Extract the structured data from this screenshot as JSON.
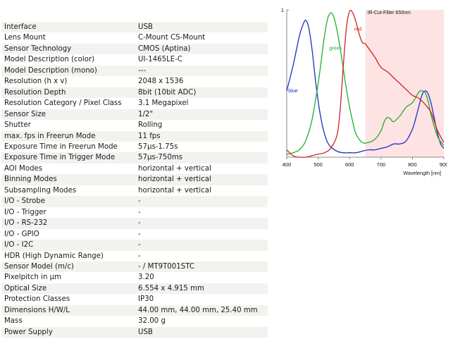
{
  "specs": [
    {
      "label": "Interface",
      "value": "USB"
    },
    {
      "label": "Lens Mount",
      "value": "C-Mount CS-Mount"
    },
    {
      "label": "Sensor Technology",
      "value": "CMOS (Aptina)"
    },
    {
      "label": "Model Description (color)",
      "value": "UI-1465LE-C"
    },
    {
      "label": "Model Description (mono)",
      "value": "---"
    },
    {
      "label": "Resolution (h x v)",
      "value": "2048 x 1536"
    },
    {
      "label": "Resolution Depth",
      "value": "8bit (10bit ADC)"
    },
    {
      "label": "Resolution Category / Pixel Class",
      "value": "3.1 Megapixel"
    },
    {
      "label": "Sensor Size",
      "value": "1/2\""
    },
    {
      "label": "Shutter",
      "value": "Rolling"
    },
    {
      "label": "max. fps in Freerun Mode",
      "value": "11 fps"
    },
    {
      "label": "Exposure Time in Freerun Mode",
      "value": "57µs-1.75s"
    },
    {
      "label": "Exposure Time in Trigger Mode",
      "value": "57µs-750ms"
    },
    {
      "label": "AOI Modes",
      "value": "horizontal + vertical"
    },
    {
      "label": "Binning Modes",
      "value": "horizontal + vertical"
    },
    {
      "label": "Subsampling Modes",
      "value": "horizontal + vertical"
    },
    {
      "label": "I/O - Strobe",
      "value": "-"
    },
    {
      "label": "I/O - Trigger",
      "value": "-"
    },
    {
      "label": "I/O - RS-232",
      "value": "-"
    },
    {
      "label": "I/O - GPIO",
      "value": "-"
    },
    {
      "label": "I/O - I2C",
      "value": "-"
    },
    {
      "label": "HDR (High Dynamic Range)",
      "value": "-"
    },
    {
      "label": "Sensor Model (m/c)",
      "value": "- / MT9T001STC"
    },
    {
      "label": "Pixelpitch in µm",
      "value": "3.20"
    },
    {
      "label": "Optical Size",
      "value": "6.554 x 4.915 mm"
    },
    {
      "label": "Protection Classes",
      "value": "IP30"
    },
    {
      "label": "Dimensions H/W/L",
      "value": "44.00 mm, 44.00 mm, 25.40 mm"
    },
    {
      "label": "Mass",
      "value": "32.00 g"
    },
    {
      "label": "Power Supply",
      "value": "USB"
    }
  ],
  "chart_data": {
    "type": "line",
    "xlabel": "Wavelength [nm]",
    "ylabel": "",
    "xlim": [
      400,
      900
    ],
    "ylim": [
      0,
      1
    ],
    "x_ticks": [
      400,
      500,
      600,
      700,
      800,
      900
    ],
    "y_tick_label": "1",
    "annotation": "IR-Cut-Filter 650nm",
    "shaded_region": [
      650,
      900
    ],
    "shade_color": "#fde3e3",
    "series": [
      {
        "name": "blue",
        "color": "#1f2ec4",
        "x": [
          400,
          420,
          440,
          450,
          460,
          470,
          480,
          490,
          500,
          510,
          520,
          530,
          540,
          560,
          580,
          600,
          620,
          640,
          660,
          680,
          700,
          720,
          740,
          760,
          780,
          800,
          810,
          820,
          830,
          840,
          850,
          860,
          870,
          880,
          890,
          900
        ],
        "y": [
          0.45,
          0.62,
          0.82,
          0.89,
          0.93,
          0.88,
          0.74,
          0.55,
          0.38,
          0.25,
          0.16,
          0.1,
          0.07,
          0.04,
          0.03,
          0.03,
          0.03,
          0.04,
          0.05,
          0.05,
          0.06,
          0.07,
          0.09,
          0.09,
          0.11,
          0.19,
          0.26,
          0.34,
          0.42,
          0.45,
          0.43,
          0.36,
          0.26,
          0.16,
          0.09,
          0.06
        ]
      },
      {
        "name": "green",
        "color": "#1fae2e",
        "x": [
          400,
          420,
          440,
          460,
          480,
          500,
          510,
          520,
          530,
          540,
          550,
          560,
          570,
          580,
          590,
          600,
          610,
          620,
          640,
          660,
          680,
          700,
          710,
          720,
          730,
          740,
          760,
          780,
          800,
          820,
          830,
          840,
          850,
          860,
          880,
          900
        ],
        "y": [
          0.02,
          0.03,
          0.05,
          0.11,
          0.25,
          0.5,
          0.66,
          0.82,
          0.94,
          0.98,
          0.95,
          0.86,
          0.74,
          0.6,
          0.46,
          0.34,
          0.24,
          0.16,
          0.1,
          0.1,
          0.12,
          0.18,
          0.24,
          0.27,
          0.26,
          0.24,
          0.28,
          0.34,
          0.37,
          0.44,
          0.45,
          0.44,
          0.38,
          0.28,
          0.14,
          0.08
        ]
      },
      {
        "name": "red",
        "color": "#d42121",
        "x": [
          400,
          420,
          440,
          460,
          480,
          500,
          520,
          540,
          560,
          570,
          580,
          590,
          600,
          610,
          620,
          630,
          640,
          650,
          660,
          680,
          700,
          720,
          740,
          760,
          780,
          800,
          820,
          840,
          860,
          880,
          900
        ],
        "y": [
          0.05,
          0.01,
          0.0,
          0.0,
          0.01,
          0.02,
          0.03,
          0.06,
          0.15,
          0.32,
          0.62,
          0.88,
          0.99,
          0.98,
          0.92,
          0.84,
          0.78,
          0.77,
          0.74,
          0.68,
          0.61,
          0.58,
          0.54,
          0.5,
          0.46,
          0.42,
          0.4,
          0.36,
          0.3,
          0.18,
          0.1
        ]
      }
    ]
  }
}
